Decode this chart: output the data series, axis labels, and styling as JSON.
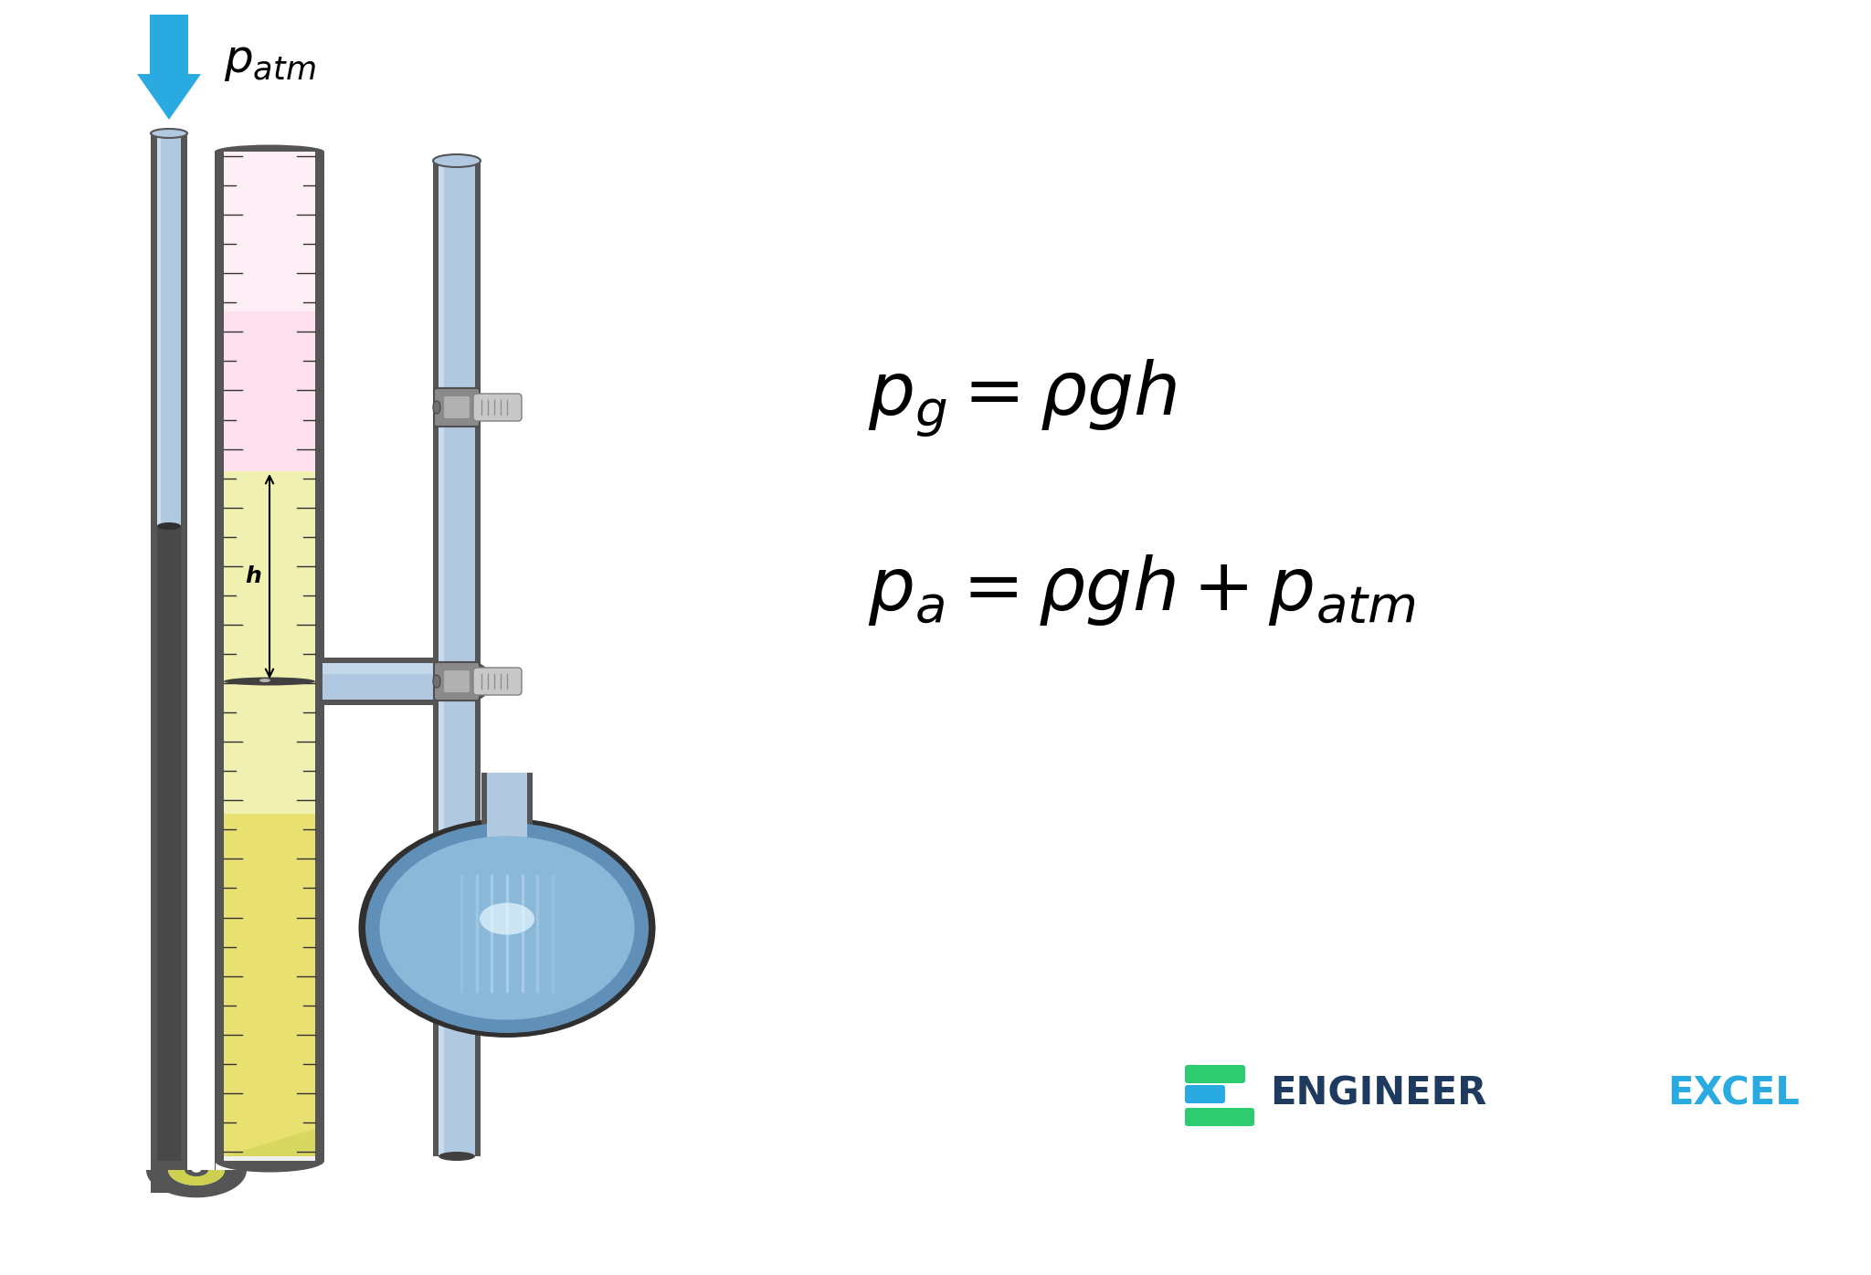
{
  "bg_color": "#ffffff",
  "arrow_color": "#29ABE2",
  "tube_dark": "#555555",
  "tube_mid": "#888888",
  "tube_blue_outer": "#7090b8",
  "tube_blue_inner": "#b0c8e0",
  "tube_blue_highlight": "#d8e8f5",
  "liquid_yellow": "#e8e870",
  "liquid_yellow_light": "#f5f5a0",
  "liquid_yellow_very_light": "#fafae0",
  "gas_pink": "#ffd8e8",
  "gas_pink_top": "#ffe8f0",
  "scale_bg_liquid": "#f8f8e0",
  "scale_bg_gas": "#fff0f5",
  "scale_tick": "#333333",
  "flask_blue": "#8ab4d8",
  "flask_blue_light": "#c0d8f0",
  "flask_dark": "#303030",
  "valve_gray": "#9a9a9a",
  "valve_light": "#d0d0d0",
  "logo_dark": "#1e3a5f",
  "logo_green": "#2ecc71",
  "logo_blue": "#29ABE2"
}
